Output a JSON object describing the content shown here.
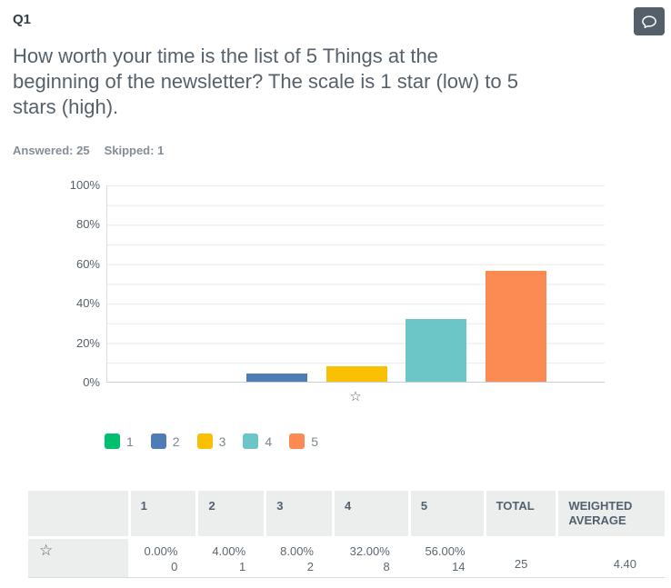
{
  "header": {
    "question_number": "Q1",
    "comment_icon": "speech-bubble-icon"
  },
  "question": {
    "text": "How worth your time is the list of 5 Things at the beginning of the newsletter? The scale is 1 star (low) to 5 stars (high).",
    "lines": [
      "How worth your time is the list of 5 Things at the",
      "beginning of the newsletter? The scale is 1 star (low) to 5",
      "stars (high)."
    ]
  },
  "stats": {
    "answered_label": "Answered:",
    "answered_value": "25",
    "skipped_label": "Skipped:",
    "skipped_value": "1"
  },
  "chart_data": {
    "type": "bar",
    "categories": [
      "1",
      "2",
      "3",
      "4",
      "5"
    ],
    "values": [
      0,
      4,
      8,
      32,
      56
    ],
    "colors": [
      "#00BF6F",
      "#507CB5",
      "#F9C004",
      "#6CC5C6",
      "#FC8A53"
    ],
    "title": "",
    "xlabel": "star-rating",
    "ylabel": "",
    "ylim": [
      0,
      100
    ],
    "yticks": [
      "0%",
      "20%",
      "40%",
      "60%",
      "80%",
      "100%"
    ],
    "grid_interval_percent": 10,
    "x_axis_category_icon": "star-outline",
    "legend": [
      "1",
      "2",
      "3",
      "4",
      "5"
    ],
    "legend_position": "bottom-left"
  },
  "table": {
    "headers": [
      "",
      "1",
      "2",
      "3",
      "4",
      "5",
      "TOTAL",
      "WEIGHTED AVERAGE"
    ],
    "row": {
      "label_icon": "star-outline",
      "cells": [
        {
          "percent": "0.00%",
          "count": "0"
        },
        {
          "percent": "4.00%",
          "count": "1"
        },
        {
          "percent": "8.00%",
          "count": "2"
        },
        {
          "percent": "32.00%",
          "count": "8"
        },
        {
          "percent": "56.00%",
          "count": "14"
        }
      ],
      "total": "25",
      "weighted_average": "4.40"
    }
  },
  "colors": {
    "heading_text": "#333E48",
    "body_text": "#56616C",
    "muted_text": "#848D96",
    "comment_button_bg": "#545F69",
    "table_header_bg": "#ECEDED",
    "gridline": "#E8EAEB"
  },
  "glyphs": {
    "star_outline": "☆"
  }
}
